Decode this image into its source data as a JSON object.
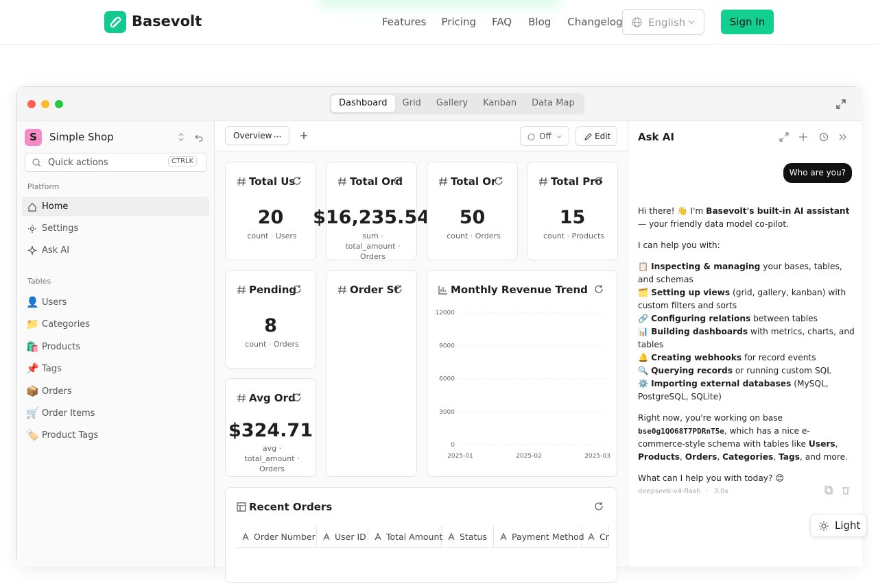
{
  "nav": {
    "brand": "Basevolt",
    "links": [
      "Features",
      "Pricing",
      "FAQ",
      "Blog",
      "Changelog"
    ],
    "language": "English",
    "sign_in": "Sign In"
  },
  "window": {
    "tabs": [
      "Dashboard",
      "Grid",
      "Gallery",
      "Kanban",
      "Data Map"
    ],
    "active_tab": 0
  },
  "sidebar": {
    "workspace": "Simple Shop",
    "workspace_initial": "S",
    "search": "Quick actions",
    "shortcut": "CTRLK",
    "platform_heading": "Platform",
    "platform": [
      "Home",
      "Settings",
      "Ask AI"
    ],
    "active_item": 0,
    "tables_heading": "Tables",
    "tables": [
      {
        "icon": "👤",
        "label": "Users"
      },
      {
        "icon": "📁",
        "label": "Categories"
      },
      {
        "icon": "🛍️",
        "label": "Products"
      },
      {
        "icon": "📌",
        "label": "Tags"
      },
      {
        "icon": "📦",
        "label": "Orders"
      },
      {
        "icon": "🛒",
        "label": "Order Items"
      },
      {
        "icon": "🏷️",
        "label": "Product Tags"
      }
    ]
  },
  "toolbar": {
    "tab": "Overview",
    "toggle": "Off",
    "edit": "Edit"
  },
  "metrics": [
    {
      "title": "Total Us",
      "value": "20",
      "caption": "count · Users"
    },
    {
      "title": "Total Ord",
      "value": "$16,235.54",
      "caption": "sum · total_amount · Orders"
    },
    {
      "title": "Total Or",
      "value": "50",
      "caption": "count · Orders"
    },
    {
      "title": "Total Pro",
      "value": "15",
      "caption": "count · Products"
    },
    {
      "title": "Pending",
      "value": "8",
      "caption": "count · Orders"
    },
    {
      "title": "Avg Ord",
      "value": "$324.71",
      "caption": "avg · total_amount · Orders"
    }
  ],
  "order_status": {
    "title": "Order St"
  },
  "chart_data": {
    "type": "line",
    "title": "Monthly Revenue Trend",
    "categories": [
      "2025-01",
      "2025-02",
      "2025-03"
    ],
    "ylim": [
      0,
      12000
    ],
    "yticks": [
      0,
      3000,
      6000,
      9000,
      12000
    ],
    "grid": true
  },
  "recent_orders": {
    "title": "Recent Orders",
    "columns": [
      "Order Number",
      "User ID",
      "Total Amount",
      "Status",
      "Payment Method",
      "Cr"
    ]
  },
  "ask_ai": {
    "title": "Ask AI",
    "user_message": "Who are you?",
    "paragraphs": [
      [
        {
          "text": "Hi there! 👋 I'm "
        },
        {
          "text": "Basevolt's built-in AI assistant",
          "bold": true
        },
        {
          "text": " — your friendly data model co-pilot."
        }
      ],
      [
        {
          "text": "I can help you with:"
        }
      ],
      [
        {
          "text": "📋 "
        },
        {
          "text": "Inspecting & managing",
          "bold": true
        },
        {
          "text": " your bases, tables, and schemas"
        }
      ],
      [
        {
          "text": "🗂️ "
        },
        {
          "text": "Setting up views",
          "bold": true
        },
        {
          "text": " (grid, gallery, kanban) with custom filters and sorts"
        }
      ],
      [
        {
          "text": "🔗 "
        },
        {
          "text": "Configuring relations",
          "bold": true
        },
        {
          "text": " between tables"
        }
      ],
      [
        {
          "text": "📊 "
        },
        {
          "text": "Building dashboards",
          "bold": true
        },
        {
          "text": " with metrics, charts, and tables"
        }
      ],
      [
        {
          "text": "🔔 "
        },
        {
          "text": "Creating webhooks",
          "bold": true
        },
        {
          "text": " for record events"
        }
      ],
      [
        {
          "text": "🔍 "
        },
        {
          "text": "Querying records",
          "bold": true
        },
        {
          "text": " or running custom SQL"
        }
      ],
      [
        {
          "text": "⚙️ "
        },
        {
          "text": "Importing external databases",
          "bold": true
        },
        {
          "text": " (MySQL, PostgreSQL, SQLite)"
        }
      ],
      [
        {
          "text": "Right now, you're working on base "
        },
        {
          "text": "bse0g1QO68T7PDRnT5e",
          "code": true
        },
        {
          "text": ", which has a nice e-commerce-style schema with tables like "
        },
        {
          "text": "Users",
          "bold": true
        },
        {
          "text": ", "
        },
        {
          "text": "Products",
          "bold": true
        },
        {
          "text": ", "
        },
        {
          "text": "Orders",
          "bold": true
        },
        {
          "text": ", "
        },
        {
          "text": "Categories",
          "bold": true
        },
        {
          "text": ", "
        },
        {
          "text": "Tags",
          "bold": true
        },
        {
          "text": ", and more."
        }
      ],
      [
        {
          "text": "What can I help you with today? 😊"
        }
      ]
    ],
    "model": "deepseek-v4-flash",
    "duration": "3.0s"
  },
  "theme_toggle": "Light"
}
